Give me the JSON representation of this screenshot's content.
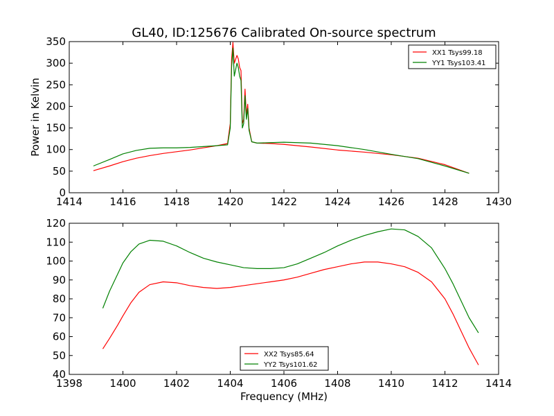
{
  "figure": {
    "title": "GL40, ID:125676 Calibrated On-source spectrum"
  },
  "chart_data": [
    {
      "type": "line",
      "title": "GL40, ID:125676 Calibrated On-source spectrum",
      "xlabel": "",
      "ylabel": "Power in Kelvin",
      "xlim": [
        1414,
        1430
      ],
      "ylim": [
        0,
        350
      ],
      "xticks": [
        1414,
        1416,
        1418,
        1420,
        1422,
        1424,
        1426,
        1428,
        1430
      ],
      "yticks": [
        0,
        50,
        100,
        150,
        200,
        250,
        300,
        350
      ],
      "legend_position": "top-right",
      "grid": false,
      "series": [
        {
          "name": "XX1 Tsys99.18",
          "color": "#ff0000",
          "x": [
            1414.9,
            1415.5,
            1416.0,
            1416.5,
            1417.0,
            1417.5,
            1418.0,
            1418.5,
            1419.0,
            1419.5,
            1419.9,
            1420.0,
            1420.05,
            1420.1,
            1420.15,
            1420.25,
            1420.3,
            1420.35,
            1420.4,
            1420.45,
            1420.5,
            1420.55,
            1420.6,
            1420.65,
            1420.7,
            1420.8,
            1421.0,
            1421.5,
            1422.0,
            1423.0,
            1424.0,
            1425.0,
            1426.0,
            1427.0,
            1428.0,
            1428.9
          ],
          "y": [
            51,
            62,
            72,
            80,
            86,
            91,
            95,
            99,
            104,
            109,
            114,
            160,
            310,
            348,
            300,
            318,
            310,
            290,
            283,
            160,
            170,
            240,
            180,
            205,
            150,
            118,
            115,
            114,
            112,
            106,
            99,
            94,
            88,
            80,
            65,
            45
          ]
        },
        {
          "name": "YY1 Tsys103.41",
          "color": "#008000",
          "x": [
            1414.9,
            1415.5,
            1416.0,
            1416.5,
            1417.0,
            1417.5,
            1418.0,
            1418.5,
            1419.0,
            1419.5,
            1419.9,
            1420.0,
            1420.05,
            1420.1,
            1420.15,
            1420.25,
            1420.3,
            1420.35,
            1420.4,
            1420.45,
            1420.5,
            1420.55,
            1420.6,
            1420.65,
            1420.7,
            1420.8,
            1421.0,
            1421.5,
            1422.0,
            1423.0,
            1424.0,
            1425.0,
            1426.0,
            1427.0,
            1428.0,
            1428.9
          ],
          "y": [
            62,
            77,
            90,
            98,
            103,
            104,
            104,
            105,
            107,
            109,
            111,
            150,
            290,
            335,
            270,
            300,
            290,
            270,
            260,
            150,
            160,
            225,
            170,
            195,
            145,
            118,
            115,
            116,
            117,
            115,
            109,
            100,
            89,
            79,
            62,
            45
          ]
        }
      ]
    },
    {
      "type": "line",
      "title": "",
      "xlabel": "Frequency (MHz)",
      "ylabel": "",
      "xlim": [
        1398,
        1414
      ],
      "ylim": [
        40,
        120
      ],
      "xticks": [
        1398,
        1400,
        1402,
        1404,
        1406,
        1408,
        1410,
        1412,
        1414
      ],
      "yticks": [
        40,
        50,
        60,
        70,
        80,
        90,
        100,
        110,
        120
      ],
      "legend_position": "bottom-center",
      "grid": false,
      "series": [
        {
          "name": "XX2 Tsys85.64",
          "color": "#ff0000",
          "x": [
            1399.25,
            1399.5,
            1399.8,
            1400.0,
            1400.3,
            1400.6,
            1401.0,
            1401.5,
            1402.0,
            1402.5,
            1403.0,
            1403.5,
            1404.0,
            1404.5,
            1405.0,
            1405.5,
            1406.0,
            1406.5,
            1407.0,
            1407.5,
            1408.0,
            1408.5,
            1409.0,
            1409.5,
            1410.0,
            1410.5,
            1411.0,
            1411.5,
            1412.0,
            1412.3,
            1412.6,
            1412.9,
            1413.25
          ],
          "y": [
            53.5,
            59,
            66,
            71,
            78,
            83.5,
            87.5,
            89,
            88.5,
            87,
            86,
            85.5,
            86,
            87,
            88,
            89,
            90,
            91.5,
            93.5,
            95.5,
            97,
            98.5,
            99.5,
            99.5,
            98.5,
            97,
            94,
            89,
            80,
            72,
            63,
            54,
            45
          ]
        },
        {
          "name": "YY2 Tsys101.62",
          "color": "#008000",
          "x": [
            1399.25,
            1399.5,
            1399.8,
            1400.0,
            1400.3,
            1400.6,
            1401.0,
            1401.5,
            1402.0,
            1402.5,
            1403.0,
            1403.5,
            1404.0,
            1404.5,
            1405.0,
            1405.5,
            1406.0,
            1406.5,
            1407.0,
            1407.5,
            1408.0,
            1408.5,
            1409.0,
            1409.5,
            1410.0,
            1410.5,
            1411.0,
            1411.5,
            1412.0,
            1412.3,
            1412.6,
            1412.9,
            1413.25
          ],
          "y": [
            75,
            84,
            93,
            99,
            105,
            109,
            111,
            110.5,
            108,
            104.5,
            101.5,
            99.5,
            98,
            96.5,
            96,
            96,
            96.5,
            98.5,
            101.5,
            104.5,
            108,
            111,
            113.5,
            115.5,
            117,
            116.5,
            113,
            107,
            96,
            88,
            79,
            70,
            62
          ]
        }
      ]
    }
  ]
}
